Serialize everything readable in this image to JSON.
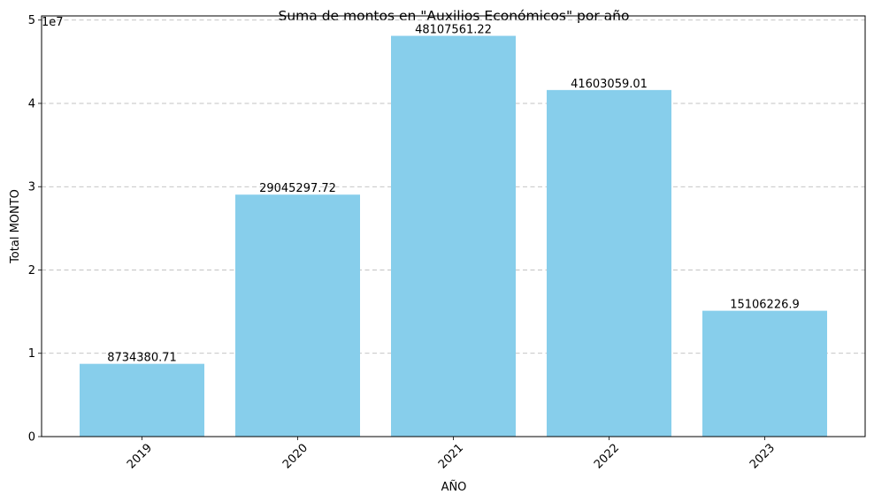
{
  "chart_data": {
    "type": "bar",
    "title": "Suma de montos en \"Auxilios Económicos\" por año",
    "xlabel": "AÑO",
    "ylabel": "Total MONTO",
    "y_offset_text": "1e7",
    "categories": [
      "2019",
      "2020",
      "2021",
      "2022",
      "2023"
    ],
    "values": [
      8734380.71,
      29045297.72,
      48107561.22,
      41603059.01,
      15106226.9
    ],
    "value_labels": [
      "8734380.71",
      "29045297.72",
      "48107561.22",
      "41603059.01",
      "15106226.9"
    ],
    "ylim": [
      0,
      50500000
    ],
    "yticks": [
      0,
      1,
      2,
      3,
      4,
      5
    ],
    "grid": "y-dashed",
    "x_tick_rotation": 45,
    "bar_color": "#87CEEB"
  }
}
